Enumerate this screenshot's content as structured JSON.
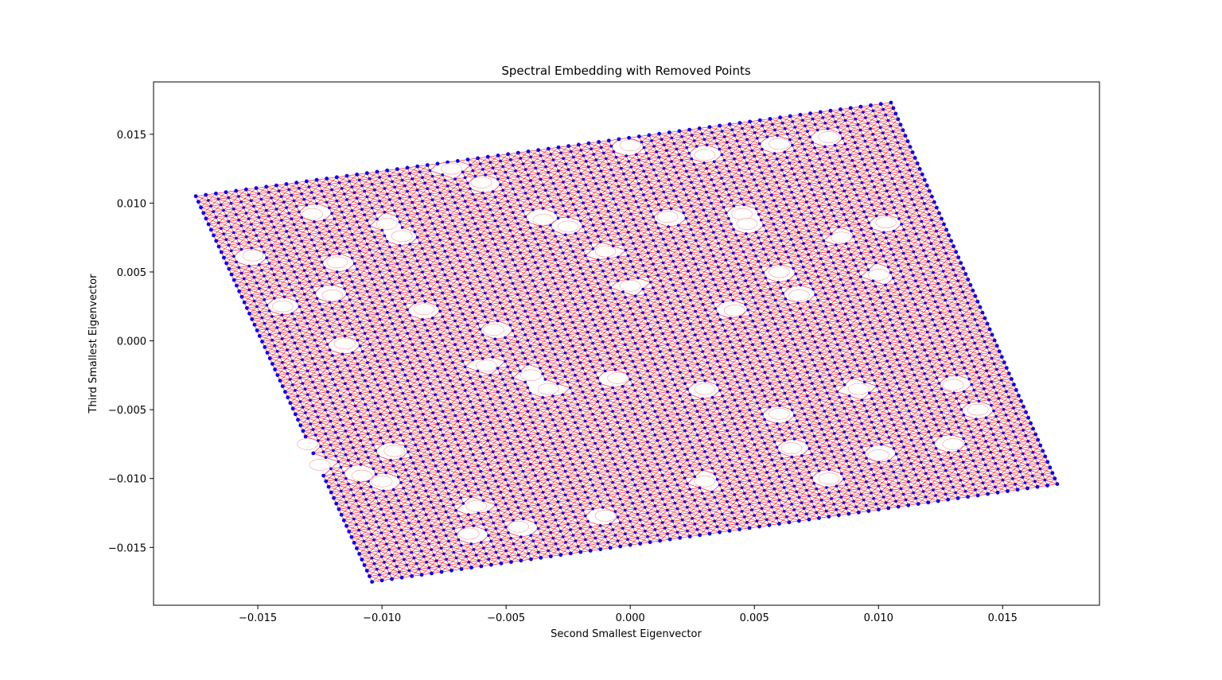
{
  "chart_data": {
    "type": "scatter",
    "title": "Spectral Embedding with Removed Points",
    "xlabel": "Second Smallest Eigenvector",
    "ylabel": "Third Smallest Eigenvector",
    "xlim": [
      -0.0192,
      0.0189
    ],
    "ylim": [
      -0.0192,
      0.0188
    ],
    "x_ticks": [
      -0.015,
      -0.01,
      -0.005,
      0.0,
      0.005,
      0.01,
      0.015
    ],
    "x_tick_labels": [
      "−0.015",
      "−0.010",
      "−0.005",
      "0.000",
      "0.005",
      "0.010",
      "0.015"
    ],
    "y_ticks": [
      -0.015,
      -0.01,
      -0.005,
      0.0,
      0.005,
      0.01,
      0.015
    ],
    "y_tick_labels": [
      "−0.015",
      "−0.010",
      "−0.005",
      "0.000",
      "0.005",
      "0.010",
      "0.015"
    ],
    "grid": false,
    "embedding": {
      "description_corners": {
        "top_left": [
          -0.0175,
          0.0105
        ],
        "top_right": [
          0.0105,
          0.0173
        ],
        "bottom_right": [
          0.0172,
          -0.0104
        ],
        "bottom_left": [
          -0.0104,
          -0.0175
        ]
      },
      "grid_rows": 70,
      "grid_cols": 70,
      "node_color": "#0000ff",
      "edge_color": "#ff0000"
    },
    "removed_regions": [
      [
        -0.0035,
        0.0088
      ],
      [
        -0.0025,
        0.0083
      ],
      [
        -0.0098,
        0.0085
      ],
      [
        -0.0092,
        0.0076
      ],
      [
        -0.0128,
        0.0092
      ],
      [
        0.0015,
        0.009
      ],
      [
        0.0045,
        0.0092
      ],
      [
        0.0047,
        0.0085
      ],
      [
        -0.001,
        0.0065
      ],
      [
        -0.0118,
        0.0057
      ],
      [
        0.006,
        0.005
      ],
      [
        0.01,
        0.0048
      ],
      [
        0.0085,
        0.0075
      ],
      [
        0.0103,
        0.0086
      ],
      [
        -0.012,
        0.0033
      ],
      [
        -0.0083,
        0.0023
      ],
      [
        0.0,
        0.004
      ],
      [
        0.0068,
        0.0033
      ],
      [
        0.0042,
        0.0022
      ],
      [
        -0.0055,
        0.0008
      ],
      [
        -0.0115,
        -0.0002
      ],
      [
        -0.0058,
        -0.0018
      ],
      [
        -0.004,
        -0.0025
      ],
      [
        -0.0033,
        -0.0035
      ],
      [
        -0.0005,
        -0.0027
      ],
      [
        0.003,
        -0.0035
      ],
      [
        0.006,
        -0.0053
      ],
      [
        0.0092,
        -0.0035
      ],
      [
        0.013,
        -0.0032
      ],
      [
        0.0065,
        -0.0078
      ],
      [
        0.01,
        -0.0083
      ],
      [
        0.013,
        -0.0075
      ],
      [
        -0.0095,
        -0.008
      ],
      [
        -0.0108,
        -0.0098
      ],
      [
        -0.01,
        -0.0102
      ],
      [
        -0.0062,
        -0.012
      ],
      [
        -0.0065,
        -0.014
      ],
      [
        -0.0045,
        -0.0135
      ],
      [
        -0.001,
        -0.0127
      ],
      [
        0.003,
        -0.0102
      ],
      [
        0.008,
        -0.01
      ],
      [
        0.003,
        0.0135
      ],
      [
        0.006,
        0.0143
      ],
      [
        0.008,
        0.0148
      ],
      [
        -0.006,
        0.0115
      ],
      [
        -0.0072,
        0.0125
      ],
      [
        0.0,
        0.0142
      ],
      [
        -0.014,
        0.0025
      ],
      [
        -0.0152,
        0.0062
      ],
      [
        -0.013,
        -0.0075
      ],
      [
        -0.0125,
        -0.009
      ],
      [
        0.014,
        -0.005
      ]
    ]
  }
}
